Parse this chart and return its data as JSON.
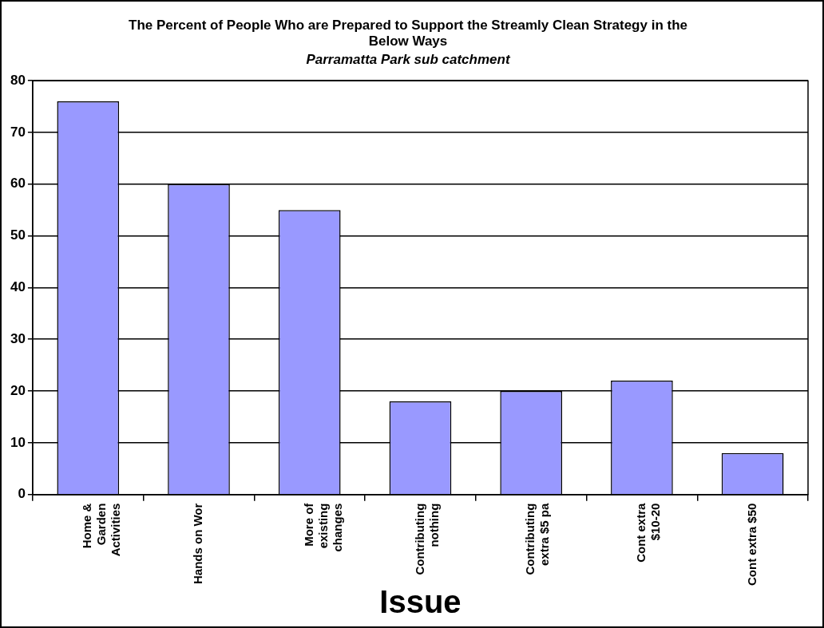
{
  "chart_data": {
    "type": "bar",
    "title": "The Percent of People Who are Prepared to Support the Streamly Clean Strategy in the Below Ways",
    "subtitle": "Parramatta Park sub catchment",
    "xlabel": "Issue",
    "categories": [
      "Home & Garden Activities",
      "Hands on Wor",
      "More of existing changes",
      "Contributing nothing",
      "Contributing extra $5 pa",
      "Cont extra $10-20",
      "Cont extra $50"
    ],
    "values": [
      76,
      60,
      55,
      18,
      20,
      22,
      8
    ],
    "color": "#9999ff",
    "ylim": [
      0,
      80
    ],
    "yticks": [
      0,
      10,
      20,
      30,
      40,
      50,
      60,
      70,
      80
    ],
    "grid": "y",
    "legend": false
  }
}
